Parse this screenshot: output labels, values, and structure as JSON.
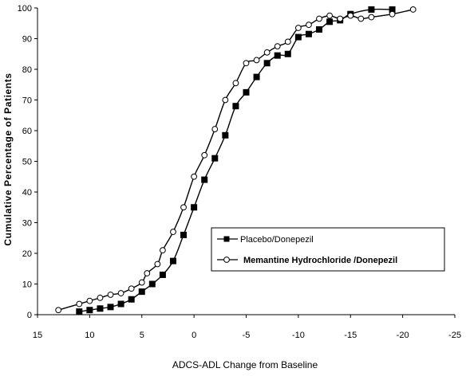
{
  "chart_data": {
    "type": "line",
    "title": "",
    "xlabel": "ADCS-ADL Change from Baseline",
    "ylabel": "Cumulative Percentage of Patients",
    "xlim": [
      15,
      -25
    ],
    "ylim": [
      0,
      100
    ],
    "x_ticks": [
      "15",
      "10",
      "5",
      "0",
      "-5",
      "-10",
      "-15",
      "-20",
      "-25"
    ],
    "y_ticks": [
      "0",
      "10",
      "20",
      "30",
      "40",
      "50",
      "60",
      "70",
      "80",
      "90",
      "100"
    ],
    "grid": false,
    "legend_position": "lower-right",
    "series": [
      {
        "name": "Placebo/Donepezil",
        "marker": "filled-square",
        "color": "#000000",
        "points": [
          [
            11,
            1
          ],
          [
            10,
            1.5
          ],
          [
            9,
            2
          ],
          [
            8,
            2.5
          ],
          [
            7,
            3.5
          ],
          [
            6,
            5
          ],
          [
            5,
            7.5
          ],
          [
            4,
            10
          ],
          [
            3,
            13
          ],
          [
            2,
            17.5
          ],
          [
            1,
            26
          ],
          [
            0,
            35
          ],
          [
            -1,
            44
          ],
          [
            -2,
            51
          ],
          [
            -3,
            58.5
          ],
          [
            -4,
            68
          ],
          [
            -5,
            72.5
          ],
          [
            -6,
            77.5
          ],
          [
            -7,
            82
          ],
          [
            -8,
            84.5
          ],
          [
            -9,
            85
          ],
          [
            -10,
            90.5
          ],
          [
            -11,
            91.5
          ],
          [
            -12,
            93
          ],
          [
            -13,
            95.5
          ],
          [
            -14,
            96
          ],
          [
            -15,
            98
          ],
          [
            -17,
            99.5
          ],
          [
            -19,
            99.5
          ]
        ]
      },
      {
        "name": "Memantine Hydrochloride /Donepezil",
        "marker": "open-circle",
        "color": "#000000",
        "points": [
          [
            13,
            1.5
          ],
          [
            11,
            3.5
          ],
          [
            10,
            4.5
          ],
          [
            9,
            5.5
          ],
          [
            8,
            6.5
          ],
          [
            7,
            7
          ],
          [
            6,
            8.5
          ],
          [
            5,
            10.5
          ],
          [
            4.5,
            13.5
          ],
          [
            3.5,
            16.5
          ],
          [
            3,
            21
          ],
          [
            2,
            27
          ],
          [
            1,
            35
          ],
          [
            0,
            45
          ],
          [
            -1,
            52
          ],
          [
            -2,
            60.5
          ],
          [
            -3,
            70
          ],
          [
            -4,
            75.5
          ],
          [
            -5,
            82
          ],
          [
            -6,
            83
          ],
          [
            -7,
            85.5
          ],
          [
            -8,
            87.5
          ],
          [
            -9,
            89
          ],
          [
            -10,
            93.5
          ],
          [
            -11,
            94.5
          ],
          [
            -12,
            96.5
          ],
          [
            -13,
            97.5
          ],
          [
            -14,
            96.5
          ],
          [
            -15,
            97.5
          ],
          [
            -16,
            96.5
          ],
          [
            -17,
            97
          ],
          [
            -19,
            98
          ],
          [
            -21,
            99.5
          ]
        ]
      }
    ]
  }
}
